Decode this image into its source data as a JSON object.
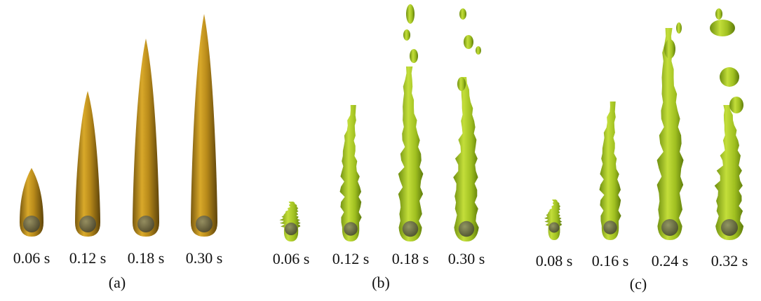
{
  "panels": [
    {
      "caption": "(a)",
      "labels": [
        "0.06 s",
        "0.12 s",
        "0.18 s",
        "0.30 s"
      ]
    },
    {
      "caption": "(b)",
      "labels": [
        "0.06 s",
        "0.12 s",
        "0.18 s",
        "0.30 s"
      ]
    },
    {
      "caption": "(c)",
      "labels": [
        "0.08 s",
        "0.16 s",
        "0.24 s",
        "0.32 s"
      ]
    }
  ]
}
